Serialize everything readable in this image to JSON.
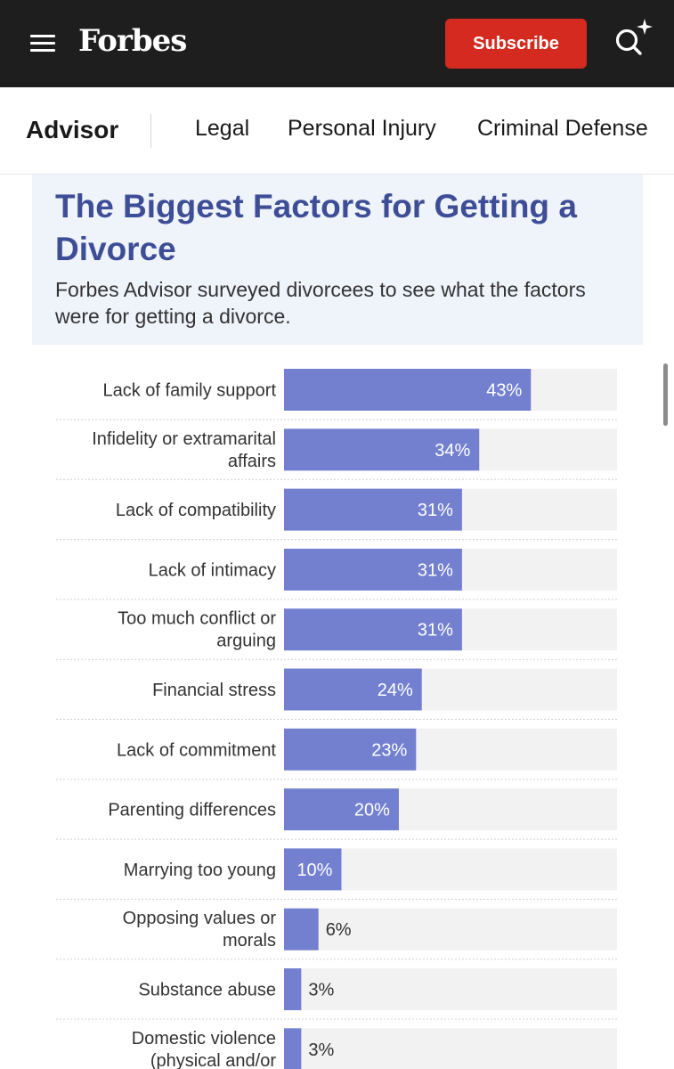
{
  "topbar": {
    "logo": "Forbes",
    "subscribe_label": "Subscribe",
    "menu_icon": "hamburger-menu-icon",
    "search_icon": "search-sparkle-icon",
    "accent_color": "#d42a1f"
  },
  "subnav": {
    "brand": "Advisor",
    "links": [
      "Legal",
      "Personal Injury",
      "Criminal Defense"
    ]
  },
  "chart_data": {
    "type": "bar",
    "orientation": "horizontal",
    "title": "The Biggest Factors for Getting a Divorce",
    "subtitle": "Forbes Advisor surveyed divorcees to see what the factors were for getting a divorce.",
    "unit": "%",
    "xlim": [
      0,
      58
    ],
    "bar_color": "#7380d0",
    "track_color": "#f2f2f2",
    "categories": [
      "Lack of family support",
      "Infidelity or extramarital affairs",
      "Lack of compatibility",
      "Lack of intimacy",
      "Too much conflict or arguing",
      "Financial stress",
      "Lack of commitment",
      "Parenting differences",
      "Marrying too young",
      "Opposing values or morals",
      "Substance abuse",
      "Domestic violence (physical and/or"
    ],
    "values": [
      43,
      34,
      31,
      31,
      31,
      24,
      23,
      20,
      10,
      6,
      3,
      3
    ],
    "labels": [
      "43%",
      "34%",
      "31%",
      "31%",
      "31%",
      "24%",
      "23%",
      "20%",
      "10%",
      "6%",
      "3%",
      "3%"
    ]
  }
}
